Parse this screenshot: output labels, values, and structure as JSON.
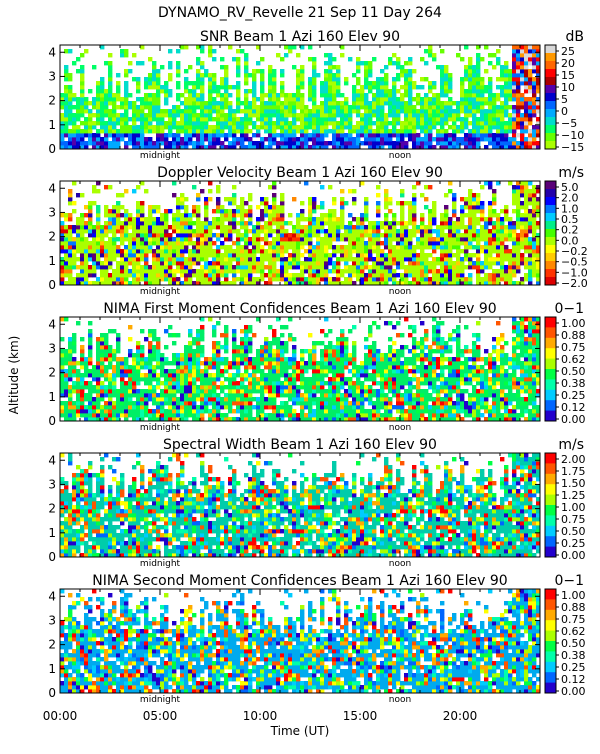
{
  "figure": {
    "title": "DYNAMO_RV_Revelle  21 Sep 11 Day 264",
    "ylabel": "Altitude (km)",
    "xlabel": "Time (UT)"
  },
  "chart_data": {
    "type": "heatmap",
    "x_tick_labels": [
      "00:00",
      "05:00",
      "10:00",
      "15:00",
      "20:00"
    ],
    "x_tick_hours": [
      0,
      5,
      10,
      15,
      20
    ],
    "xlim_hours": [
      0,
      24
    ],
    "x_markers": [
      {
        "label": "midnight",
        "hour": 5
      },
      {
        "label": "noon",
        "hour": 17
      }
    ],
    "ylim_km": [
      0,
      4.3
    ],
    "y_ticks": [
      "0",
      "1",
      "2",
      "3",
      "4"
    ],
    "panels": [
      {
        "title": "SNR Beam 1 Azi 160 Elev 90",
        "unit": "dB",
        "colorbar_labels": [
          "25",
          "20",
          "15",
          "10",
          "5",
          "0",
          "−5",
          "−10",
          "−15"
        ],
        "colors": [
          "#d8d8d8",
          "#ff9900",
          "#ff6600",
          "#ff0000",
          "#aa0000",
          "#5500aa",
          "#0000cc",
          "#0066ff",
          "#00aaff",
          "#00ddcc",
          "#00ff66",
          "#66ff00",
          "#aaff00"
        ],
        "bg": "#aaee44"
      },
      {
        "title": "Doppler Velocity Beam 1 Azi 160 Elev 90",
        "unit": "m/s",
        "colorbar_labels": [
          "5.0",
          "2.0",
          "1.0",
          "0.5",
          "0.2",
          "0.0",
          "−0.2",
          "−0.5",
          "−1.0",
          "−2.0"
        ],
        "colors": [
          "#5a0078",
          "#2200aa",
          "#0000ff",
          "#0077ff",
          "#00ccff",
          "#00ee88",
          "#44ff00",
          "#aaff00",
          "#ffff00",
          "#ffcc00",
          "#ff8800",
          "#ff3300",
          "#dd0000"
        ],
        "bg": "#aaff00"
      },
      {
        "title": "NIMA First Moment Confidences Beam 1 Azi 160 Elev 90",
        "unit": "0−1",
        "colorbar_labels": [
          "1.00",
          "0.88",
          "0.75",
          "0.62",
          "0.50",
          "0.38",
          "0.25",
          "0.12",
          "0.00"
        ],
        "colors": [
          "#ff0000",
          "#ff5500",
          "#ffaa00",
          "#ffff00",
          "#aaff00",
          "#00ff44",
          "#00ffaa",
          "#00ccff",
          "#0066ff",
          "#2200cc"
        ],
        "bg": "#00ee66"
      },
      {
        "title": "Spectral Width Beam 1 Azi 160 Elev 90",
        "unit": "m/s",
        "colorbar_labels": [
          "2.00",
          "1.75",
          "1.50",
          "1.25",
          "1.00",
          "0.75",
          "0.50",
          "0.25",
          "0.00"
        ],
        "colors": [
          "#ff0000",
          "#ff5500",
          "#ffaa00",
          "#ffff00",
          "#aaff00",
          "#00ff44",
          "#00ffaa",
          "#00ccff",
          "#0066ff",
          "#2200cc"
        ],
        "bg": "#00ccaa"
      },
      {
        "title": "NIMA Second Moment Confidences Beam 1 Azi 160 Elev 90",
        "unit": "0−1",
        "colorbar_labels": [
          "1.00",
          "0.88",
          "0.75",
          "0.62",
          "0.50",
          "0.38",
          "0.25",
          "0.12",
          "0.00"
        ],
        "colors": [
          "#ff0000",
          "#ff5500",
          "#ffaa00",
          "#ffff00",
          "#aaff00",
          "#00ff44",
          "#00ffaa",
          "#00ccff",
          "#0066ff",
          "#2200cc"
        ],
        "bg": "#00aaee"
      }
    ]
  }
}
